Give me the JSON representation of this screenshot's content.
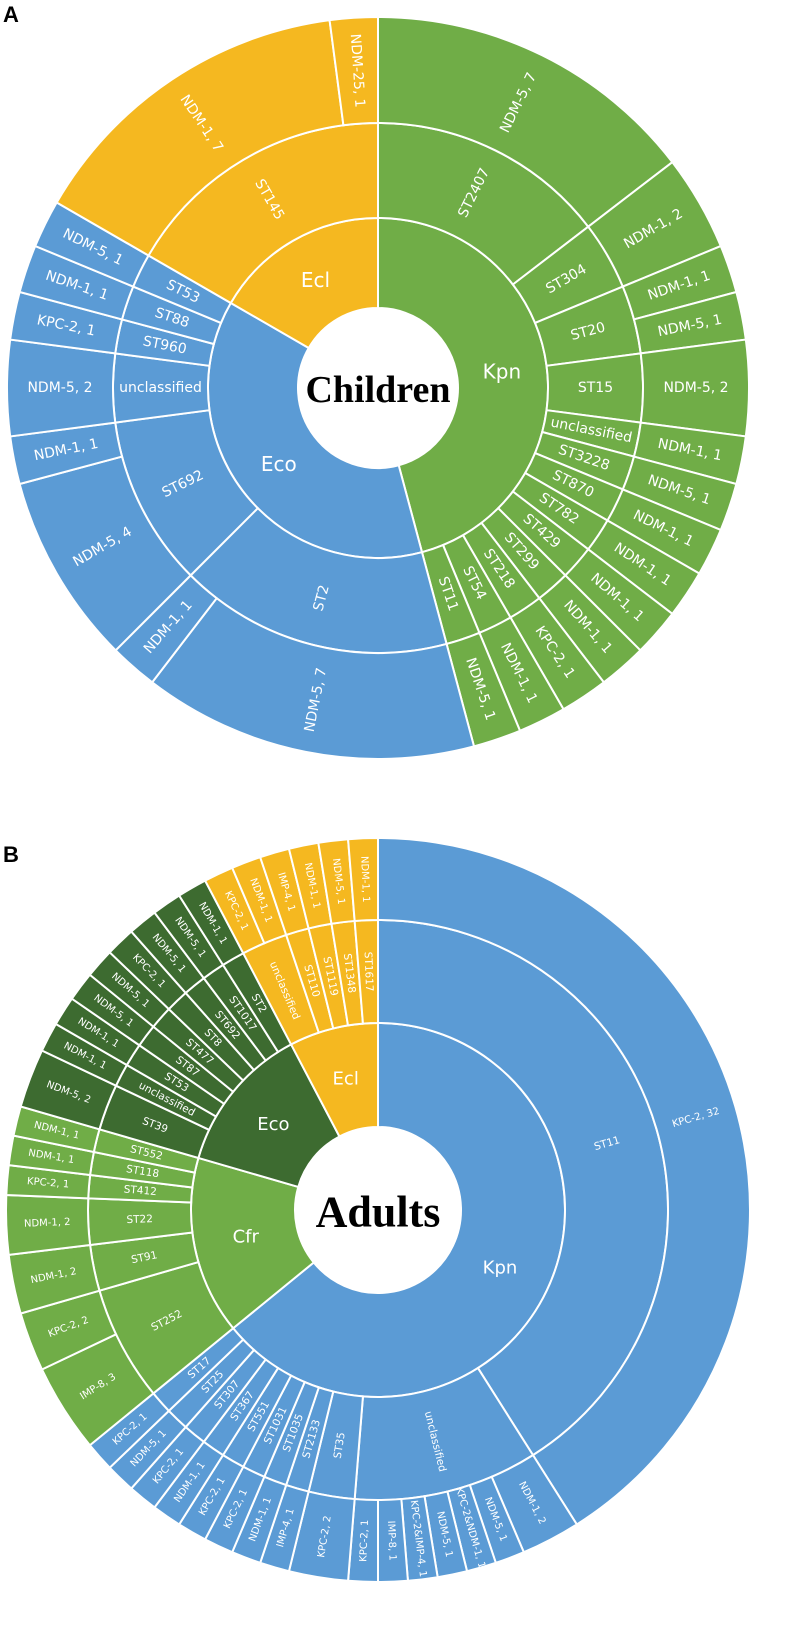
{
  "colors": {
    "Kpn_children": "#70AD47",
    "Eco_children": "#5B9BD5",
    "Ecl": "#F5B820",
    "Kpn_adults": "#5B9BD5",
    "Cfr_adults": "#70AD47",
    "Eco_adults": "#3D6B30"
  },
  "chart_data": [
    {
      "type": "sunburst",
      "panel": "A",
      "center_label": "Children",
      "rings": [
        "species",
        "sequence type",
        "carbapenemase gene, count"
      ],
      "species": [
        {
          "name": "Kpn",
          "color_key": "Kpn_children",
          "sts": [
            {
              "name": "ST2407",
              "genes": [
                [
                  "NDM-5, 7",
                  7
                ]
              ]
            },
            {
              "name": "ST304",
              "genes": [
                [
                  "NDM-1, 2",
                  2
                ]
              ]
            },
            {
              "name": "ST20",
              "genes": [
                [
                  "NDM-1, 1",
                  1
                ],
                [
                  "NDM-5, 1",
                  1
                ]
              ]
            },
            {
              "name": "ST15",
              "genes": [
                [
                  "NDM-5, 2",
                  2
                ]
              ]
            },
            {
              "name": "unclassified",
              "genes": [
                [
                  "NDM-1, 1",
                  1
                ]
              ]
            },
            {
              "name": "ST3228",
              "genes": [
                [
                  "NDM-5, 1",
                  1
                ]
              ]
            },
            {
              "name": "ST870",
              "genes": [
                [
                  "NDM-1, 1",
                  1
                ]
              ]
            },
            {
              "name": "ST782",
              "genes": [
                [
                  "NDM-1, 1",
                  1
                ]
              ]
            },
            {
              "name": "ST429",
              "genes": [
                [
                  "NDM-1, 1",
                  1
                ]
              ]
            },
            {
              "name": "ST299",
              "genes": [
                [
                  "NDM-1, 1",
                  1
                ]
              ]
            },
            {
              "name": "ST218",
              "genes": [
                [
                  "KPC-2, 1",
                  1
                ]
              ]
            },
            {
              "name": "ST54",
              "genes": [
                [
                  "NDM-1, 1",
                  1
                ]
              ]
            },
            {
              "name": "ST11",
              "genes": [
                [
                  "NDM-5, 1",
                  1
                ]
              ]
            }
          ]
        },
        {
          "name": "Eco",
          "color_key": "Eco_children",
          "sts": [
            {
              "name": "ST2",
              "genes": [
                [
                  "NDM-5, 7",
                  7
                ],
                [
                  "NDM-1, 1",
                  1
                ]
              ]
            },
            {
              "name": "ST692",
              "genes": [
                [
                  "NDM-5, 4",
                  4
                ],
                [
                  "NDM-1, 1",
                  1
                ]
              ]
            },
            {
              "name": "unclassified",
              "genes": [
                [
                  "NDM-5, 2",
                  2
                ]
              ]
            },
            {
              "name": "ST960",
              "genes": [
                [
                  "KPC-2, 1",
                  1
                ]
              ]
            },
            {
              "name": "ST88",
              "genes": [
                [
                  "NDM-1, 1",
                  1
                ]
              ]
            },
            {
              "name": "ST53",
              "genes": [
                [
                  "NDM-5, 1",
                  1
                ]
              ]
            }
          ]
        },
        {
          "name": "Ecl",
          "color_key": "Ecl",
          "sts": [
            {
              "name": "ST145",
              "genes": [
                [
                  "NDM-1, 7",
                  7
                ],
                [
                  "NDM-25, 1",
                  1
                ]
              ]
            }
          ]
        }
      ]
    },
    {
      "type": "sunburst",
      "panel": "B",
      "center_label": "Adults",
      "rings": [
        "species",
        "sequence type",
        "carbapenemase gene, count"
      ],
      "species": [
        {
          "name": "Kpn",
          "color_key": "Kpn_adults",
          "sts": [
            {
              "name": "ST11",
              "genes": [
                [
                  "KPC-2, 32",
                  32
                ]
              ]
            },
            {
              "name": "unclassified",
              "genes": [
                [
                  "NDM-1, 2",
                  2
                ],
                [
                  "NDM-5, 1",
                  1
                ],
                [
                  "KPC-2&NDM-1, 1",
                  1
                ],
                [
                  "NDM-5, 1",
                  1
                ],
                [
                  "KPC-2&IMP-4, 1",
                  1
                ],
                [
                  "IMP-8, 1",
                  1
                ],
                [
                  "KPC-2, 1",
                  1
                ]
              ]
            },
            {
              "name": "ST35",
              "genes": [
                [
                  "KPC-2, 2",
                  2
                ]
              ]
            },
            {
              "name": "ST2133",
              "genes": [
                [
                  "IMP-4, 1",
                  1
                ]
              ]
            },
            {
              "name": "ST1035",
              "genes": [
                [
                  "NDM-1, 1",
                  1
                ]
              ]
            },
            {
              "name": "ST1031",
              "genes": [
                [
                  "KPC-2, 1",
                  1
                ]
              ]
            },
            {
              "name": "ST551",
              "genes": [
                [
                  "KPC-2, 1",
                  1
                ]
              ]
            },
            {
              "name": "ST367",
              "genes": [
                [
                  "NDM-1, 1",
                  1
                ]
              ]
            },
            {
              "name": "ST307",
              "genes": [
                [
                  "KPC-2, 1",
                  1
                ]
              ]
            },
            {
              "name": "ST25",
              "genes": [
                [
                  "NDM-5, 1",
                  1
                ]
              ]
            },
            {
              "name": "ST17",
              "genes": [
                [
                  "KPC-2, 1",
                  1
                ]
              ]
            }
          ]
        },
        {
          "name": "Cfr",
          "color_key": "Cfr_adults",
          "sts": [
            {
              "name": "ST252",
              "genes": [
                [
                  "IMP-8, 3",
                  3
                ],
                [
                  "KPC-2, 2",
                  2
                ]
              ]
            },
            {
              "name": "ST91",
              "genes": [
                [
                  "NDM-1, 2",
                  2
                ]
              ]
            },
            {
              "name": "ST22",
              "genes": [
                [
                  "NDM-1, 2",
                  2
                ]
              ]
            },
            {
              "name": "ST412",
              "genes": [
                [
                  "KPC-2, 1",
                  1
                ]
              ]
            },
            {
              "name": "ST118",
              "genes": [
                [
                  "NDM-1, 1",
                  1
                ]
              ]
            },
            {
              "name": "ST552",
              "genes": [
                [
                  "NDM-1, 1",
                  1
                ]
              ]
            }
          ]
        },
        {
          "name": "Eco",
          "color_key": "Eco_adults",
          "sts": [
            {
              "name": "ST39",
              "genes": [
                [
                  "NDM-5, 2",
                  2
                ]
              ]
            },
            {
              "name": "unclassified",
              "genes": [
                [
                  "NDM-1, 1",
                  1
                ]
              ]
            },
            {
              "name": "ST53",
              "genes": [
                [
                  "NDM-1, 1",
                  1
                ]
              ]
            },
            {
              "name": "ST87",
              "genes": [
                [
                  "NDM-5, 1",
                  1
                ]
              ]
            },
            {
              "name": "ST477",
              "genes": [
                [
                  "NDM-5, 1",
                  1
                ]
              ]
            },
            {
              "name": "ST8",
              "genes": [
                [
                  "KPC-2, 1",
                  1
                ]
              ]
            },
            {
              "name": "ST692",
              "genes": [
                [
                  "NDM-5, 1",
                  1
                ]
              ]
            },
            {
              "name": "ST1017",
              "genes": [
                [
                  "NDM-5, 1",
                  1
                ]
              ]
            },
            {
              "name": "ST2",
              "genes": [
                [
                  "NDM-1, 1",
                  1
                ]
              ]
            }
          ]
        },
        {
          "name": "Ecl",
          "color_key": "Ecl",
          "sts": [
            {
              "name": "unclassified",
              "genes": [
                [
                  "KPC-2, 1",
                  1
                ],
                [
                  "NDM-1, 1",
                  1
                ]
              ]
            },
            {
              "name": "ST110",
              "genes": [
                [
                  "IMP-4, 1",
                  1
                ]
              ]
            },
            {
              "name": "ST1119",
              "genes": [
                [
                  "NDM-1, 1",
                  1
                ]
              ]
            },
            {
              "name": "ST1348",
              "genes": [
                [
                  "NDM-5, 1",
                  1
                ]
              ]
            },
            {
              "name": "ST1617",
              "genes": [
                [
                  "NDM-1, 1",
                  1
                ]
              ]
            }
          ]
        }
      ]
    }
  ]
}
